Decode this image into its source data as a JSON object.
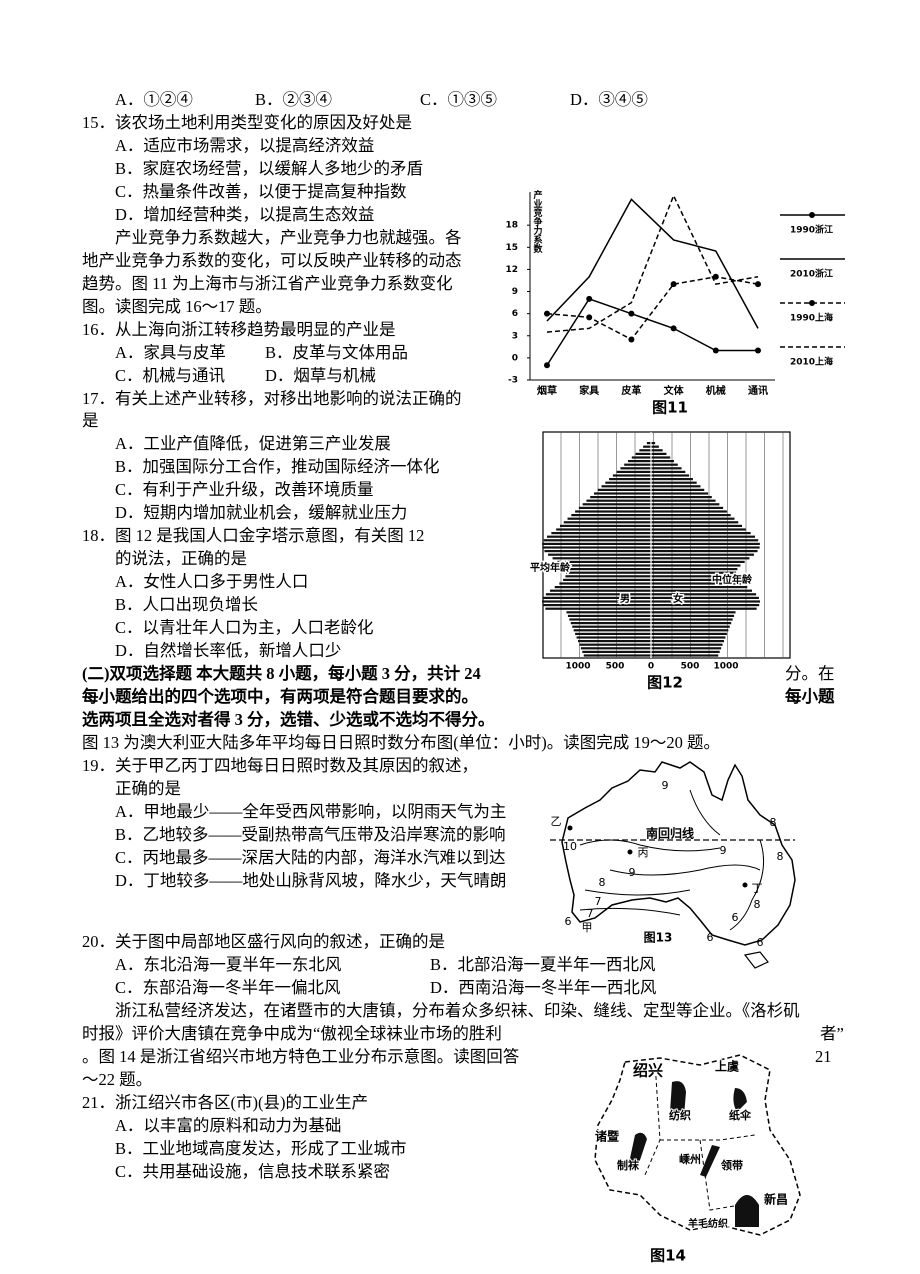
{
  "text": [
    "A．①②④",
    "B．②③④",
    "C．①③⑤",
    "D．③④⑤",
    "15．该农场土地利用类型变化的原因及好处是",
    "A．适应市场需求，以提高经济效益",
    "B．家庭农场经营，以缓解人多地少的矛盾",
    "C．热量条件改善，以便于提高复种指数",
    "D．增加经营种类，以提高生态效益",
    "产业竞争力系数越大，产业竞争力也就越强。各",
    "地产业竞争力系数的变化，可以反映产业转移的动态",
    "趋势。图 11 为上海市与浙江省产业竞争力系数变化",
    "图。读图完成 16～17 题。",
    "16．从上海向浙江转移趋势最明显的产业是",
    "A．家具与皮革",
    "B．皮革与文体用品",
    "C．机械与通讯",
    "D．烟草与机械",
    "17．有关上述产业转移，对移出地影响的说法正确的",
    "是",
    "A．工业产值降低，促进第三产业发展",
    "B．加强国际分工合作，推动国际经济一体化",
    "C．有利于产业升级，改善环境质量",
    "D．短期内增加就业机会，缓解就业压力",
    "18．图 12 是我国人口金字塔示意图，有关图 12",
    "的说法，正确的是",
    "A．女性人口多于男性人口",
    "B．人口出现负增长",
    "C．以青壮年人口为主，人口老龄化",
    "D．自然增长率低，新增人口少",
    "(二)双项选择题 本大题共 8 小题，每小题 3 分，共计 24",
    "分。在",
    "每小题给出的四个选项中，有两项是符合题目要求的。",
    "每小题",
    "选两项且全选对者得 3 分，选错、少选或不选均不得分。",
    "图 13 为澳大利亚大陆多年平均每日日照时数分布图(单位：小时)。读图完成 19～20 题。",
    "19．关于甲乙丙丁四地每日日照时数及其原因的叙述，",
    "正确的是",
    "A．甲地最少——全年受西风带影响，以阴雨天气为主",
    "B．乙地较多——受副热带高气压带及沿岸寒流的影响",
    "C．丙地最多——深居大陆的内部，海洋水汽难以到达",
    "D．丁地较多——地处山脉背风坡，降水少，天气晴朗",
    "20．关于图中局部地区盛行风向的叙述，正确的是",
    "A．东北沿海一夏半年一东北风",
    "B．北部沿海一夏半年一西北风",
    "C．东部沿海一冬半年一偏北风",
    "D．西南沿海一冬半年一西北风",
    "浙江私营经济发达，在诸暨市的大唐镇，分布着众多织袜、印染、缝线、定型等企业。《洛杉矶",
    "时报》评价大唐镇在竞争中成为“傲视全球袜业市场的胜利",
    "者”",
    "。图 14 是浙江省绍兴市地方特色工业分布示意图。读图回答",
    "21",
    "～22 题。",
    "21．浙江绍兴市各区(市)(县)的工业生产",
    "A．以丰富的原料和动力为基础",
    "B．工业地域高度发达，形成了工业城市",
    "C．共用基础设施，信息技术联系紧密"
  ],
  "figure_11": {
    "type": "line",
    "caption": "图11",
    "y_label": "产业竞争力系数",
    "categories": [
      "烟草",
      "家具",
      "皮革",
      "文体",
      "机械",
      "通讯"
    ],
    "series": [
      {
        "name": "1990浙江",
        "color": "#000000",
        "style": "solid",
        "markers": true,
        "values": [
          -1,
          8,
          6,
          4,
          1,
          1
        ]
      },
      {
        "name": "2010浙江",
        "color": "#000000",
        "style": "solid",
        "markers": false,
        "values": [
          5,
          11,
          21.5,
          16,
          14.5,
          4
        ]
      },
      {
        "name": "1990上海",
        "color": "#000000",
        "style": "dashed",
        "markers": true,
        "values": [
          6,
          5.5,
          2.5,
          10,
          11,
          10
        ]
      },
      {
        "name": "2010上海",
        "color": "#000000",
        "style": "dashed",
        "markers": false,
        "values": [
          3.5,
          4,
          7.5,
          22,
          10,
          11
        ]
      }
    ],
    "ylim": [
      -3,
      22.5
    ],
    "yticks": [
      18,
      15,
      12,
      9,
      6,
      3,
      0,
      -3
    ]
  },
  "figure_12": {
    "caption": "图12",
    "labels": [
      "平均年龄",
      "中位年龄",
      "男",
      "女"
    ],
    "x_ticks": [
      "1000",
      "500",
      "0",
      "500",
      "1000"
    ]
  },
  "figure_13": {
    "caption": "图13",
    "labels": [
      "9",
      "8",
      "乙",
      "南回归线",
      "10",
      "丙",
      "9",
      "8",
      "9",
      "8",
      "丁",
      "8",
      "7",
      "7",
      "6",
      "6",
      "甲",
      "6",
      "6"
    ]
  },
  "figure_14": {
    "caption": "图14",
    "labels": [
      "绍兴",
      "上虞",
      "纺织",
      "纸伞",
      "诸暨",
      "制袜",
      "嵊州",
      "领带",
      "新昌",
      "羊毛纺织"
    ]
  }
}
